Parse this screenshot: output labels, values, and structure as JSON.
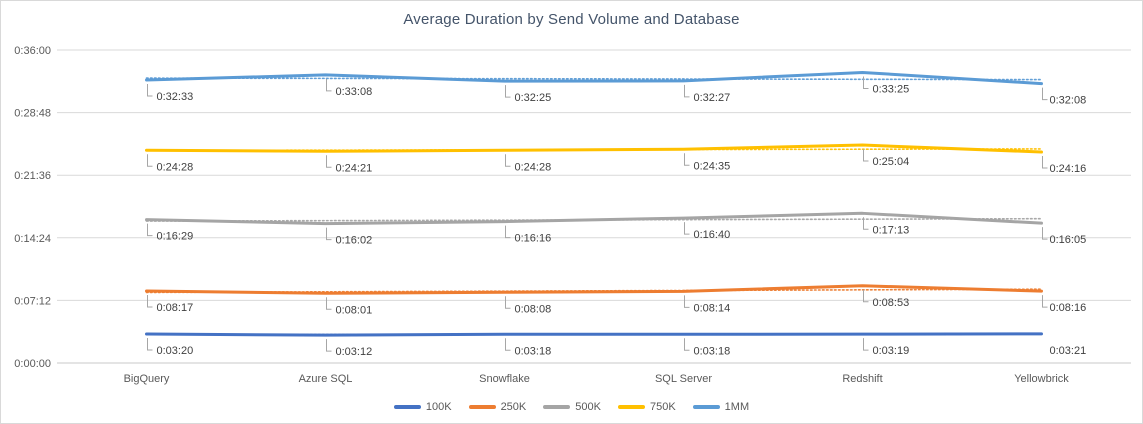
{
  "window": {
    "background": "#FFFFFF",
    "border_color": "#D9D9D9"
  },
  "chart_data": {
    "type": "line",
    "title": "Average Duration by Send Volume and Database",
    "categories": [
      "BigQuery",
      "Azure SQL",
      "Snowflake",
      "SQL Server",
      "Redshift",
      "Yellowbrick"
    ],
    "series": [
      {
        "name": "100K",
        "color": "#4472C4",
        "values": [
          "0:03:20",
          "0:03:12",
          "0:03:18",
          "0:03:18",
          "0:03:19",
          "0:03:21"
        ],
        "labels_without_leader": [
          5
        ]
      },
      {
        "name": "250K",
        "color": "#ED7D31",
        "values": [
          "0:08:17",
          "0:08:01",
          "0:08:08",
          "0:08:14",
          "0:08:53",
          "0:08:16"
        ],
        "labels_without_leader": []
      },
      {
        "name": "500K",
        "color": "#A5A5A5",
        "values": [
          "0:16:29",
          "0:16:02",
          "0:16:16",
          "0:16:40",
          "0:17:13",
          "0:16:05"
        ],
        "labels_without_leader": []
      },
      {
        "name": "750K",
        "color": "#FFC000",
        "values": [
          "0:24:28",
          "0:24:21",
          "0:24:28",
          "0:24:35",
          "0:25:04",
          "0:24:16"
        ],
        "labels_without_leader": []
      },
      {
        "name": "1MM",
        "color": "#5B9BD5",
        "values": [
          "0:32:33",
          "0:33:08",
          "0:32:25",
          "0:32:27",
          "0:33:25",
          "0:32:08"
        ],
        "labels_without_leader": []
      }
    ],
    "y_axis": {
      "ticks": [
        "0:00:00",
        "0:07:12",
        "0:14:24",
        "0:21:36",
        "0:28:48",
        "0:36:00"
      ],
      "min_seconds": 0,
      "max_seconds": 2160
    },
    "legend": {
      "position": "bottom",
      "entries": [
        "100K",
        "250K",
        "500K",
        "750K",
        "1MM"
      ]
    },
    "gridlines": true,
    "gridline_color": "#D9D9D9",
    "axis_line_color": "#C9C9C9",
    "leader_line_color": "#A6A6A6",
    "data_labels": {
      "shown": true,
      "format": "h:mm:ss"
    },
    "trendlines": {
      "shown": true,
      "style": "dotted",
      "fit": "linear"
    }
  }
}
